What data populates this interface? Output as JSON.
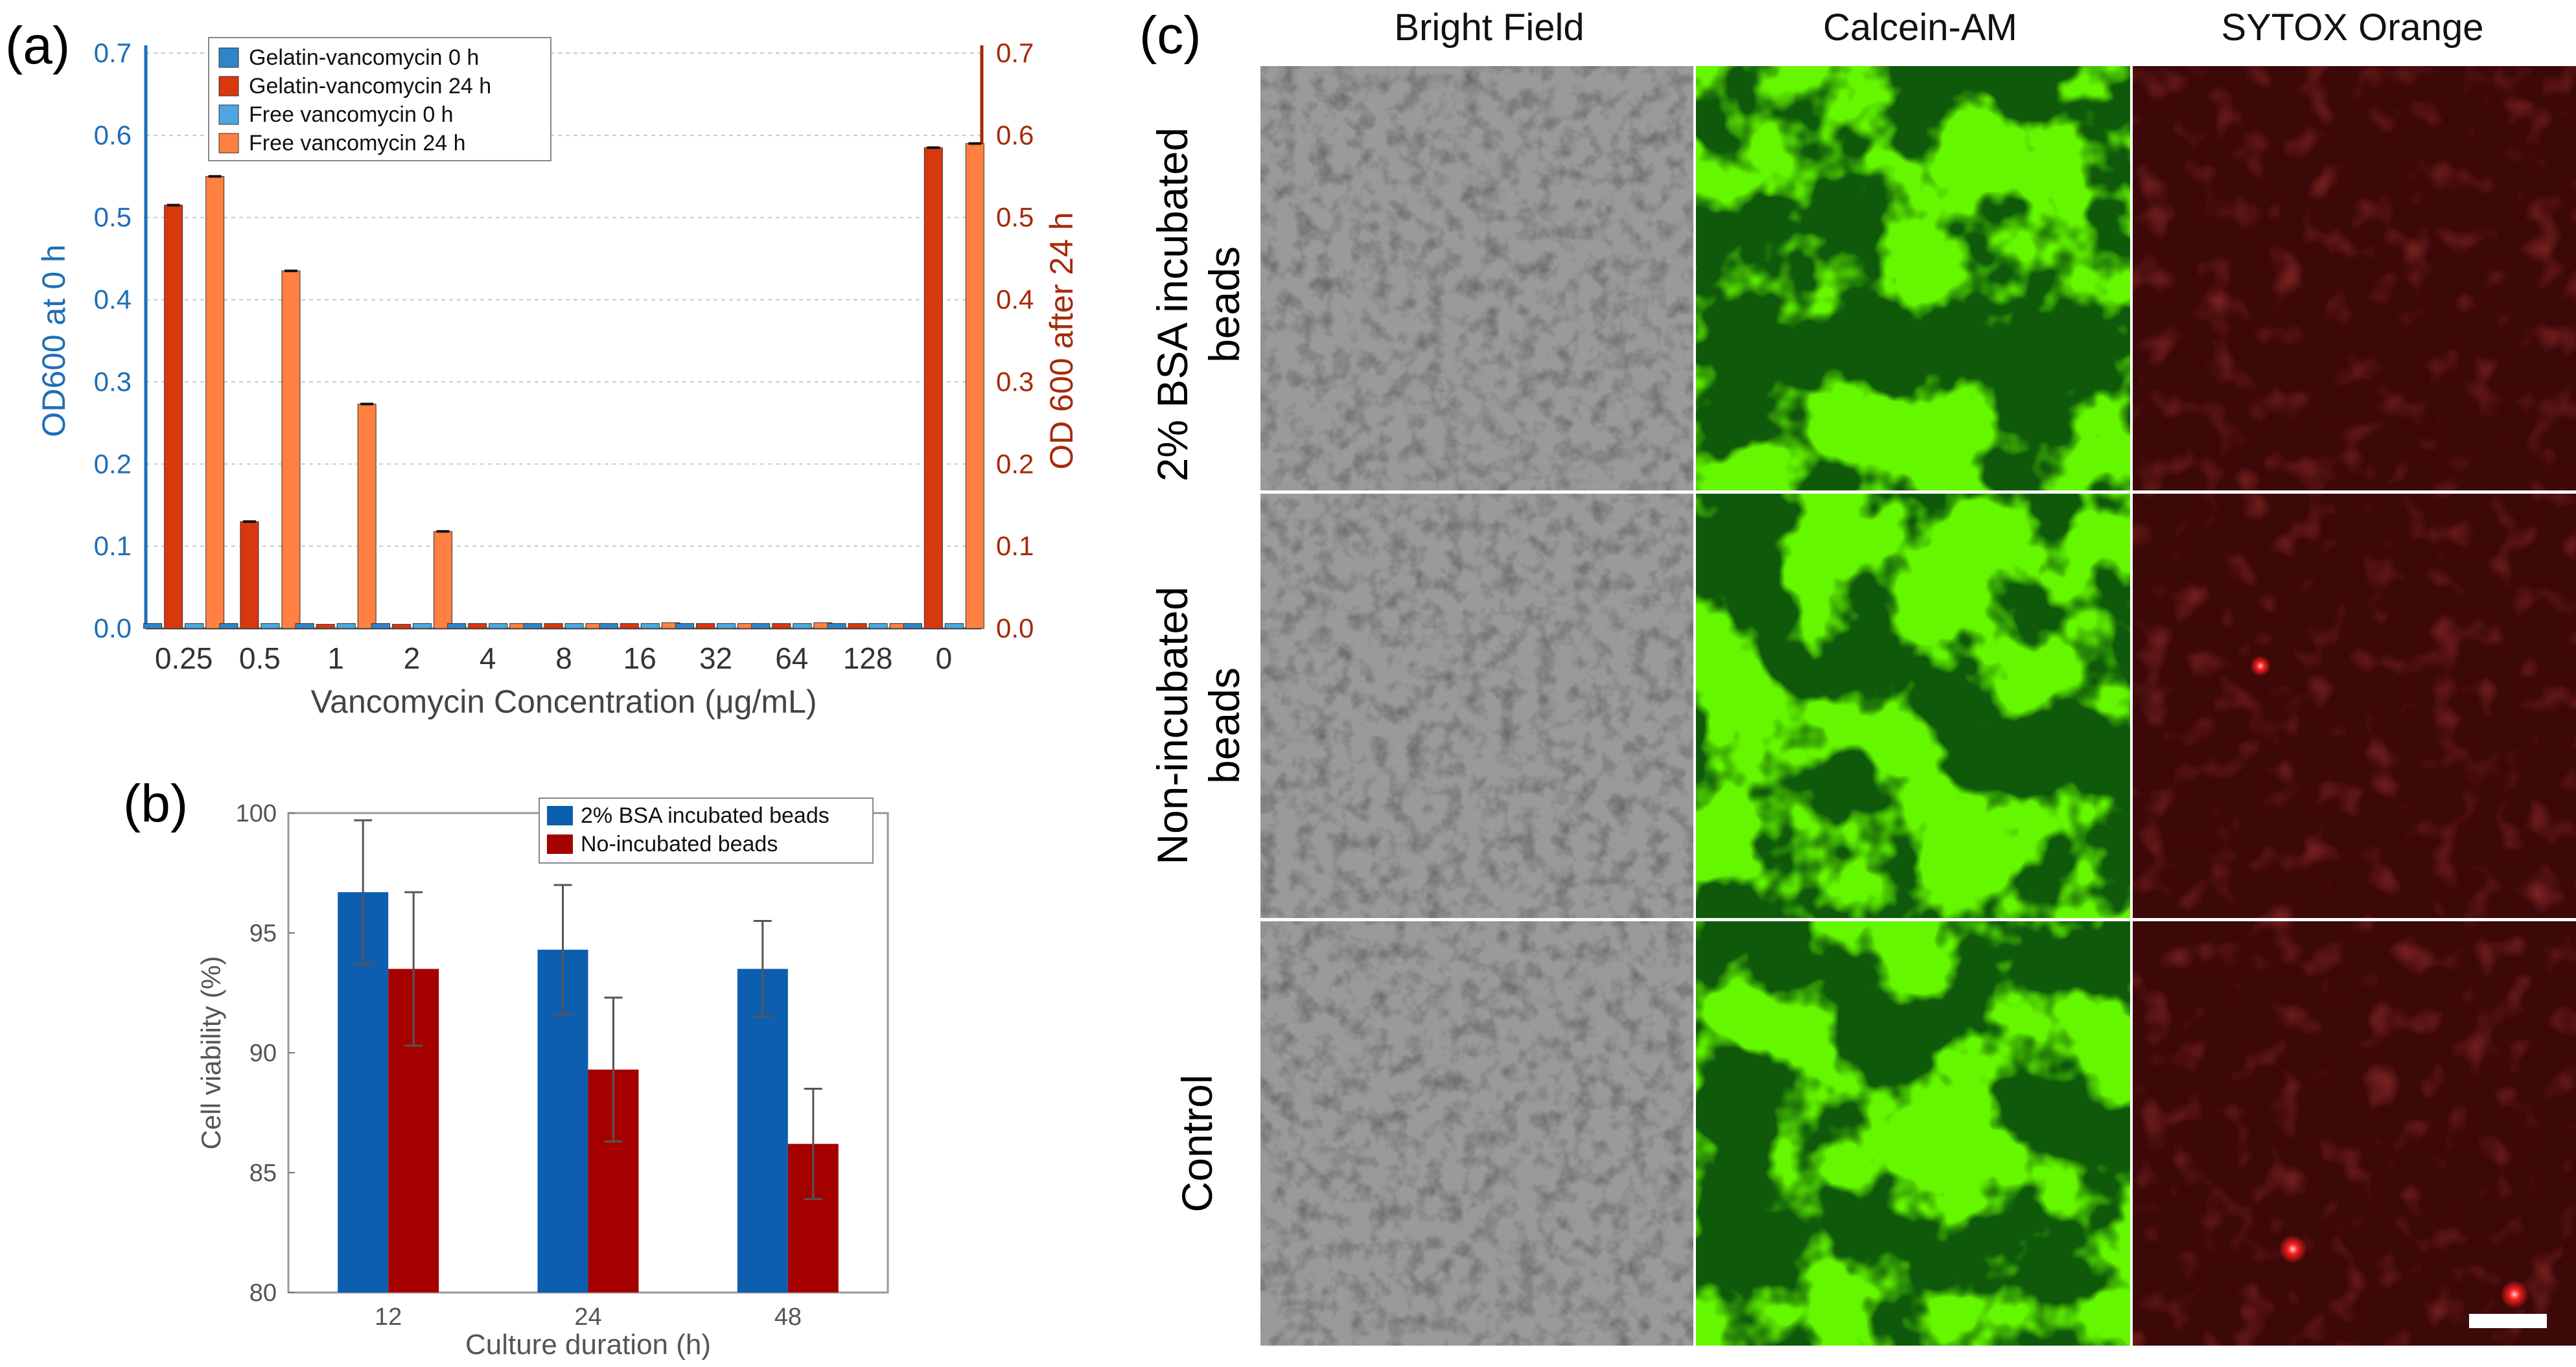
{
  "colors": {
    "left_axis": "#1f6fb5",
    "right_axis": "#a52a0a",
    "gel_0h": "#2e86c8",
    "gel_24h": "#d8380e",
    "free_0h": "#4da6e0",
    "free_24h": "#ff8040",
    "bsa_bar": "#0e5eb0",
    "noinc_bar": "#a50000",
    "green_fluor": "#22ee00",
    "green_dark": "#0f5a0a",
    "red_bg": "#3c0808",
    "red_spot": "#ff2020"
  },
  "panel_labels": {
    "a": "(a)",
    "b": "(b)",
    "c": "(c)"
  },
  "chart_data": [
    {
      "type": "bar",
      "panel": "a",
      "xlabel": "Vancomycin Concentration (μg/mL)",
      "ylabel_left": "OD600 at 0 h",
      "ylabel_right": "OD 600 after 24 h",
      "ylim": [
        0,
        0.7
      ],
      "yticks": [
        "0.0",
        "0.1",
        "0.2",
        "0.3",
        "0.4",
        "0.5",
        "0.6",
        "0.7"
      ],
      "categories": [
        "0.25",
        "0.5",
        "1",
        "2",
        "4",
        "8",
        "16",
        "32",
        "64",
        "128",
        "0"
      ],
      "series": [
        {
          "name": "Gelatin-vancomycin 0 h",
          "color": "#2e86c8",
          "values": [
            0.006,
            0.006,
            0.006,
            0.006,
            0.006,
            0.006,
            0.006,
            0.006,
            0.006,
            0.006,
            0.006
          ]
        },
        {
          "name": "Gelatin-vancomycin 24 h",
          "color": "#d8380e",
          "values": [
            0.515,
            0.13,
            0.005,
            0.005,
            0.006,
            0.006,
            0.006,
            0.006,
            0.006,
            0.006,
            0.585
          ]
        },
        {
          "name": "Free vancomycin 0 h",
          "color": "#4da6e0",
          "values": [
            0.006,
            0.006,
            0.006,
            0.006,
            0.006,
            0.006,
            0.006,
            0.006,
            0.006,
            0.006,
            0.006
          ]
        },
        {
          "name": "Free vancomycin 24 h",
          "color": "#ff8040",
          "values": [
            0.55,
            0.435,
            0.273,
            0.118,
            0.006,
            0.006,
            0.007,
            0.006,
            0.007,
            0.006,
            0.59
          ]
        }
      ],
      "legend": "top-left"
    },
    {
      "type": "bar",
      "panel": "b",
      "xlabel": "Culture duration (h)",
      "ylabel": "Cell viability (%)",
      "ylim": [
        80,
        100
      ],
      "yticks": [
        "80",
        "85",
        "90",
        "95",
        "100"
      ],
      "categories": [
        "12",
        "24",
        "48"
      ],
      "series": [
        {
          "name": "2% BSA incubated beads",
          "color": "#0e5eb0",
          "values": [
            96.7,
            94.3,
            93.5
          ],
          "errors": [
            3.0,
            2.7,
            2.0
          ]
        },
        {
          "name": "No-incubated beads",
          "color": "#a50000",
          "values": [
            93.5,
            89.3,
            86.2
          ],
          "errors": [
            3.2,
            3.0,
            2.3
          ]
        }
      ],
      "legend": "top-right"
    }
  ],
  "micrographs": {
    "columns": [
      "Bright Field",
      "Calcein-AM",
      "SYTOX Orange"
    ],
    "rows": [
      "2% BSA incubated beads",
      "Non-incubated beads",
      "Control"
    ]
  }
}
